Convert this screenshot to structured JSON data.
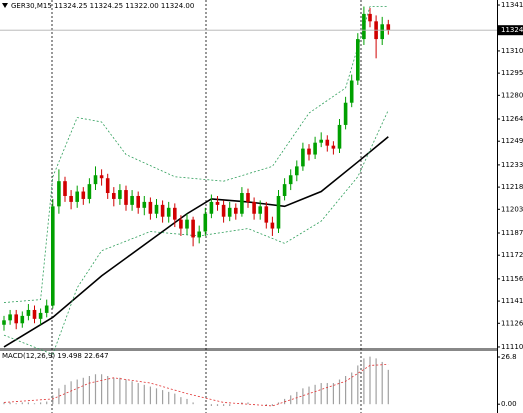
{
  "chart_data": [
    {
      "type": "candlestick",
      "title": "GER30,M15 11324.25 11324.25 11322.00 11324.00",
      "open": [
        11125,
        11128,
        11132,
        11126,
        11131,
        11135,
        11129,
        11133,
        11138,
        11205,
        11222,
        11212,
        11208,
        11215,
        11210,
        11220,
        11226,
        11224,
        11214,
        11210,
        11216,
        11206,
        11212,
        11204,
        11208,
        11200,
        11206,
        11198,
        11204,
        11196,
        11190,
        11196,
        11184,
        11188,
        11200,
        11208,
        11206,
        11198,
        11204,
        11200,
        11214,
        11208,
        11200,
        11205,
        11194,
        11190,
        11212,
        11220,
        11226,
        11232,
        11244,
        11240,
        11248,
        11250,
        11246,
        11244,
        11260,
        11275,
        11290,
        11318,
        11335,
        11330,
        11318,
        11328
      ],
      "high": [
        11131,
        11135,
        11135,
        11134,
        11139,
        11138,
        11136,
        11142,
        11210,
        11230,
        11225,
        11216,
        11219,
        11218,
        11224,
        11232,
        11230,
        11227,
        11218,
        11220,
        11219,
        11216,
        11215,
        11212,
        11211,
        11210,
        11209,
        11208,
        11207,
        11199,
        11200,
        11198,
        11192,
        11204,
        11213,
        11212,
        11209,
        11208,
        11207,
        11218,
        11217,
        11211,
        11209,
        11208,
        11198,
        11216,
        11224,
        11230,
        11236,
        11248,
        11247,
        11252,
        11255,
        11253,
        11249,
        11264,
        11279,
        11294,
        11322,
        11340,
        11339,
        11334,
        11333,
        11331
      ],
      "low": [
        11121,
        11125,
        11122,
        11123,
        11128,
        11126,
        11125,
        11130,
        11136,
        11200,
        11208,
        11203,
        11204,
        11206,
        11207,
        11216,
        11219,
        11210,
        11205,
        11206,
        11202,
        11202,
        11200,
        11199,
        11196,
        11197,
        11194,
        11194,
        11191,
        11185,
        11186,
        11178,
        11180,
        11185,
        11197,
        11202,
        11194,
        11195,
        11196,
        11198,
        11204,
        11196,
        11196,
        11190,
        11185,
        11187,
        11209,
        11216,
        11222,
        11229,
        11236,
        11237,
        11245,
        11242,
        11240,
        11241,
        11257,
        11272,
        11287,
        11314,
        11326,
        11305,
        11314,
        11321
      ],
      "close": [
        11128,
        11132,
        11126,
        11131,
        11135,
        11129,
        11133,
        11138,
        11205,
        11222,
        11212,
        11208,
        11215,
        11210,
        11220,
        11226,
        11224,
        11214,
        11210,
        11216,
        11206,
        11212,
        11204,
        11208,
        11200,
        11206,
        11198,
        11204,
        11196,
        11190,
        11196,
        11184,
        11188,
        11200,
        11208,
        11206,
        11198,
        11204,
        11200,
        11214,
        11208,
        11200,
        11205,
        11194,
        11190,
        11212,
        11220,
        11226,
        11232,
        11244,
        11240,
        11248,
        11250,
        11246,
        11244,
        11260,
        11275,
        11290,
        11318,
        11335,
        11330,
        11318,
        11328,
        11324
      ],
      "up_color": "#00a000",
      "down_color": "#d00000",
      "lines": [
        {
          "color": "#000000",
          "style": "solid",
          "x": [
            0,
            8,
            16,
            24,
            30,
            34,
            40,
            46,
            52,
            58,
            63
          ],
          "values": [
            11110,
            11130,
            11158,
            11182,
            11200,
            11210,
            11208,
            11205,
            11215,
            11235,
            11252
          ]
        },
        {
          "color": "#2e9e5a",
          "style": "dashed",
          "x": [
            0,
            6,
            8,
            12,
            16,
            20,
            28,
            36,
            44,
            50,
            56,
            60,
            63
          ],
          "values": [
            11140,
            11142,
            11225,
            11265,
            11262,
            11240,
            11225,
            11222,
            11232,
            11268,
            11285,
            11340,
            11340
          ]
        },
        {
          "color": "#2e9e5a",
          "style": "dashed",
          "x": [
            0,
            8,
            12,
            16,
            24,
            32,
            40,
            46,
            52,
            58,
            63
          ],
          "values": [
            11118,
            11105,
            11150,
            11175,
            11188,
            11185,
            11190,
            11180,
            11195,
            11225,
            11270
          ]
        }
      ],
      "current_price": 11324,
      "ylim": [
        11109.3,
        11344.4
      ],
      "yticks": [
        11341,
        11310,
        11295,
        11280,
        11264,
        11249,
        11233,
        11218,
        11203,
        11187,
        11172,
        11156,
        11141,
        11126,
        11110
      ]
    },
    {
      "type": "bar",
      "title": "MACD(12,26,9) 19.498 22.647",
      "color": "#a0a0a0",
      "values": [
        1,
        1,
        0.5,
        1,
        1,
        0.5,
        1,
        1.5,
        5,
        9,
        11,
        13,
        14,
        15,
        16,
        17,
        17,
        16,
        15,
        15,
        14,
        13,
        12,
        11,
        10,
        9,
        8,
        7,
        6,
        4,
        3,
        1,
        0,
        -1,
        -1,
        -1,
        -1,
        -1,
        0,
        1,
        1,
        0,
        0,
        -1,
        -1,
        1,
        3,
        5,
        7,
        9,
        10,
        11,
        12,
        12,
        12,
        14,
        16,
        18,
        22,
        26,
        27,
        26,
        24,
        19.5
      ],
      "lines": [
        {
          "color": "#e03030",
          "style": "dashed",
          "x": [
            0,
            8,
            14,
            18,
            24,
            30,
            36,
            44,
            50,
            56,
            60,
            63
          ],
          "values": [
            1,
            3,
            12,
            15,
            12,
            6,
            1,
            -1,
            6,
            13,
            22,
            22.6
          ]
        }
      ],
      "ylim": [
        -5,
        30.2
      ],
      "yticks": [
        {
          "value": 26.8,
          "label": "26.8"
        },
        {
          "value": 0,
          "label": "0.00"
        }
      ]
    }
  ]
}
